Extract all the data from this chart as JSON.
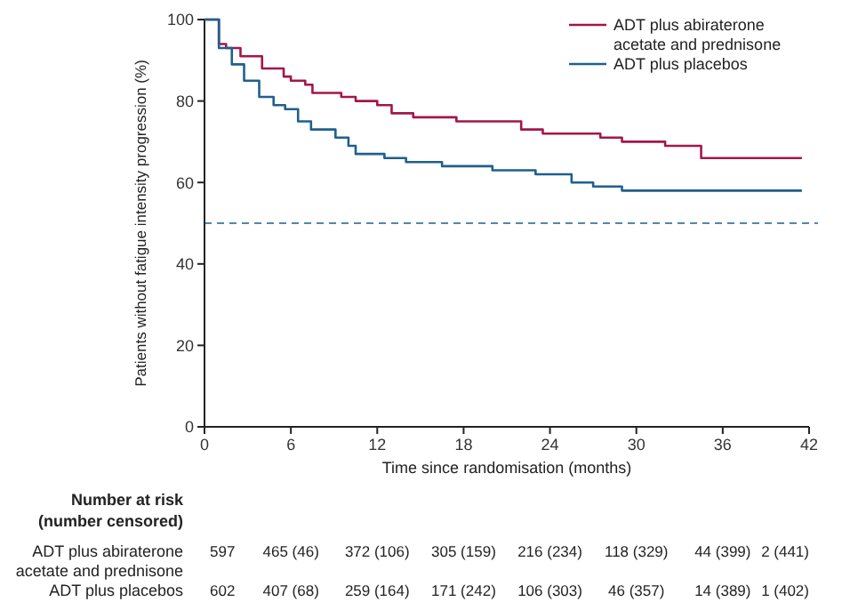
{
  "chart_data": {
    "type": "step",
    "xlabel": "Time since randomisation (months)",
    "ylabel": "Patients without fatigue intensity progression (%)",
    "xlim": [
      0,
      42
    ],
    "xticks": [
      0,
      6,
      12,
      18,
      24,
      30,
      36,
      42
    ],
    "ylim": [
      0,
      100
    ],
    "yticks": [
      0,
      20,
      40,
      60,
      80,
      100
    ],
    "legend": "top right",
    "grid": false,
    "line_style": "solid",
    "series": [
      {
        "name": "ADT plus abiraterone acetate and prednisone",
        "color": "#a3174a",
        "x": [
          0,
          1,
          1.5,
          2.5,
          4,
          5.5,
          6,
          7,
          7.5,
          9.5,
          10.5,
          12,
          13,
          14.5,
          17.5,
          22,
          23.5,
          27.5,
          29,
          32,
          34.5,
          41.5
        ],
        "values": [
          100,
          94,
          93,
          91,
          88,
          86,
          85,
          84,
          82,
          81,
          80,
          79,
          77,
          76,
          75,
          73,
          72,
          71,
          70,
          69,
          66,
          66
        ]
      },
      {
        "name": "ADT plus placebos",
        "color": "#1f5f8f",
        "x": [
          0,
          1,
          1.9,
          2.75,
          3.8,
          4.8,
          5.6,
          6.5,
          7.4,
          9.1,
          10,
          10.5,
          12.5,
          14,
          16.5,
          20,
          23,
          25.5,
          27,
          29,
          41.5
        ],
        "values": [
          100,
          93,
          89,
          85,
          81,
          79,
          78,
          75,
          73,
          71,
          69,
          67,
          66,
          65,
          64,
          63,
          62,
          60,
          59,
          58,
          58
        ]
      }
    ],
    "ref_lines": [
      {
        "axis": "y",
        "value": 50,
        "color": "#1f5f8f",
        "line_style": "dashed"
      }
    ],
    "annotations": [
      "Number at risk",
      "(number censored)",
      "ADT plus abiraterone acetate and prednisone",
      "597",
      "465 (46)",
      "372 (106)",
      "305 (159)",
      "216 (234)",
      "118 (329)",
      "44 (399)",
      "2 (441)",
      "ADT plus placebos",
      "602",
      "407 (68)",
      "259 (164)",
      "171 (242)",
      "106 (303)",
      "46 (357)",
      "14 (389)",
      "1 (402)"
    ]
  }
}
